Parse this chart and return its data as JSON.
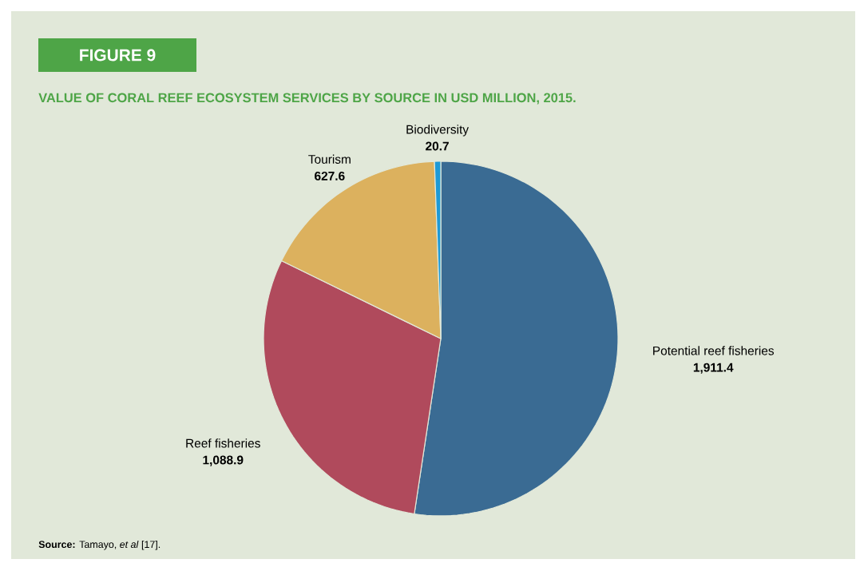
{
  "chart_data": {
    "type": "pie",
    "title": "FIGURE 9",
    "subtitle": "VALUE OF CORAL REEF ECOSYSTEM SERVICES BY SOURCE IN USD MILLION, 2015.",
    "categories": [
      "Potential reef fisheries",
      "Reef fisheries",
      "Tourism",
      "Biodiversity"
    ],
    "values": [
      1911.4,
      1088.9,
      627.6,
      20.7
    ],
    "value_labels": [
      "1,911.4",
      "1,088.9",
      "627.6",
      "20.7"
    ],
    "colors": [
      "#3a6b93",
      "#b04a5c",
      "#dcb15e",
      "#1e9ad6"
    ],
    "legend": false,
    "annotations": [
      "**Source:** Tamayo, *et al* [17]."
    ]
  }
}
